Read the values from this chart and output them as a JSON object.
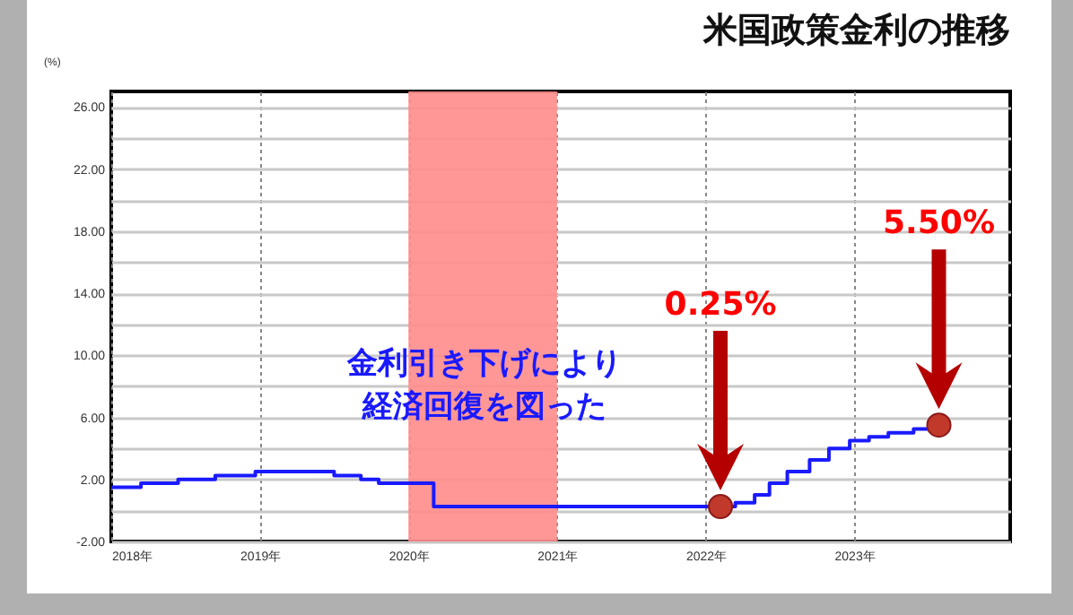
{
  "chart_data": {
    "type": "step",
    "title": "米国政策金利の推移",
    "ylabel": "(%)",
    "xlim": [
      2018,
      2024.05
    ],
    "xticks": [
      {
        "value": 2018,
        "label": "2018年"
      },
      {
        "value": 2019,
        "label": "2019年"
      },
      {
        "value": 2020,
        "label": "2020年"
      },
      {
        "value": 2021,
        "label": "2021年"
      },
      {
        "value": 2022,
        "label": "2022年"
      },
      {
        "value": 2023,
        "label": "2023年"
      }
    ],
    "ylim": [
      -2,
      27
    ],
    "yticks": [
      {
        "value": -2,
        "label": "-2.00"
      },
      {
        "value": 0,
        "label": null
      },
      {
        "value": 2,
        "label": "2.00"
      },
      {
        "value": 4,
        "label": null
      },
      {
        "value": 6,
        "label": "6.00"
      },
      {
        "value": 8,
        "label": null
      },
      {
        "value": 10,
        "label": "10.00"
      },
      {
        "value": 12,
        "label": null
      },
      {
        "value": 14,
        "label": "14.00"
      },
      {
        "value": 16,
        "label": null
      },
      {
        "value": 18,
        "label": "18.00"
      },
      {
        "value": 20,
        "label": null
      },
      {
        "value": 22,
        "label": "22.00"
      },
      {
        "value": 24,
        "label": null
      },
      {
        "value": 26,
        "label": "26.00"
      }
    ],
    "grid": true,
    "bands": [
      {
        "axis": "x",
        "from": 2020,
        "to": 2021,
        "color": "#ff8c8c"
      }
    ],
    "series": [
      {
        "color": "#1a1aff",
        "marker": "none",
        "x": [
          2018,
          2018.2,
          2018.45,
          2018.7,
          2018.97,
          2019.5,
          2019.68,
          2019.8,
          2020.17,
          2022.2,
          2022.33,
          2022.43,
          2022.55,
          2022.7,
          2022.83,
          2022.97,
          2023.1,
          2023.23,
          2023.4,
          2023.57
        ],
        "values": [
          1.5,
          1.75,
          2.0,
          2.25,
          2.5,
          2.25,
          2.0,
          1.75,
          0.25,
          0.5,
          1.0,
          1.75,
          2.5,
          3.25,
          4.0,
          4.5,
          4.75,
          5.0,
          5.25,
          5.5
        ]
      },
      {
        "type": "scatter",
        "color": "#c0392b",
        "marker": "circle",
        "x": [
          2022.1,
          2023.57
        ],
        "values": [
          0.25,
          5.5
        ]
      }
    ],
    "annotations": [
      "金利引き下げにより",
      "経済回復を図った",
      "0.25%",
      "5.50%"
    ]
  }
}
